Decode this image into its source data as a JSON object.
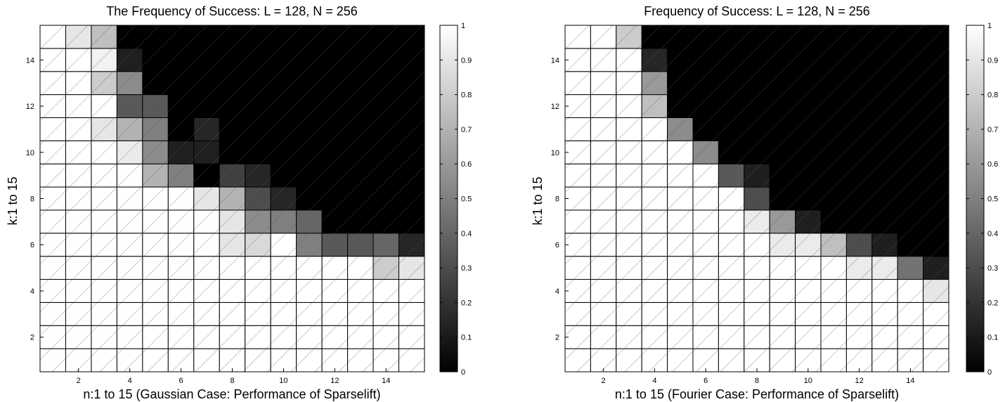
{
  "chart_data": [
    {
      "type": "heatmap",
      "title": "The Frequency of Success: L = 128, N = 256",
      "xlabel": "n:1 to 15 (Gaussian Case: Performance of Sparselift)",
      "ylabel": "k:1 to 15",
      "x_ticks": [
        "2",
        "4",
        "6",
        "8",
        "10",
        "12",
        "14"
      ],
      "y_ticks": [
        "2",
        "4",
        "6",
        "8",
        "10",
        "12",
        "14"
      ],
      "colorbar_ticks": [
        "0",
        "0.1",
        "0.2",
        "0.3",
        "0.4",
        "0.5",
        "0.6",
        "0.7",
        "0.8",
        "0.9",
        "1"
      ],
      "colormap": "gray",
      "clim": [
        0,
        1
      ],
      "x": [
        1,
        2,
        3,
        4,
        5,
        6,
        7,
        8,
        9,
        10,
        11,
        12,
        13,
        14,
        15
      ],
      "y": [
        1,
        2,
        3,
        4,
        5,
        6,
        7,
        8,
        9,
        10,
        11,
        12,
        13,
        14,
        15
      ],
      "values": [
        [
          1,
          1,
          1,
          1,
          1,
          1,
          1,
          1,
          1,
          1,
          1,
          1,
          1,
          1,
          1
        ],
        [
          1,
          1,
          1,
          1,
          1,
          1,
          1,
          1,
          1,
          1,
          1,
          1,
          1,
          1,
          1
        ],
        [
          1,
          1,
          1,
          1,
          1,
          1,
          1,
          1,
          1,
          1,
          1,
          1,
          1,
          1,
          1
        ],
        [
          1,
          1,
          1,
          1,
          1,
          1,
          1,
          1,
          1,
          1,
          1,
          1,
          1,
          1,
          1
        ],
        [
          1,
          1,
          1,
          1,
          1,
          1,
          1,
          1,
          1,
          1,
          1,
          1,
          1,
          0.8,
          0.9
        ],
        [
          1,
          1,
          1,
          1,
          1,
          1,
          1,
          0.9,
          0.85,
          1,
          0.5,
          0.35,
          0.35,
          0.4,
          0.15
        ],
        [
          1,
          1,
          1,
          1,
          1,
          1,
          1,
          0.9,
          0.55,
          0.5,
          0.4,
          0,
          0,
          0,
          0
        ],
        [
          1,
          1,
          1,
          1,
          1,
          1,
          0.9,
          0.7,
          0.3,
          0.15,
          0,
          0,
          0,
          0,
          0
        ],
        [
          1,
          1,
          1,
          1,
          0.7,
          0.5,
          0,
          0.25,
          0.15,
          0,
          0,
          0,
          0,
          0,
          0
        ],
        [
          1,
          1,
          1,
          0.92,
          0.55,
          0.12,
          0.12,
          0,
          0,
          0,
          0,
          0,
          0,
          0,
          0
        ],
        [
          1,
          1,
          0.9,
          0.7,
          0.5,
          0,
          0.15,
          0,
          0,
          0,
          0,
          0,
          0,
          0,
          0
        ],
        [
          1,
          1,
          1,
          0.35,
          0.35,
          0,
          0,
          0,
          0,
          0,
          0,
          0,
          0,
          0,
          0
        ],
        [
          1,
          1,
          0.8,
          0.55,
          0,
          0,
          0,
          0,
          0,
          0,
          0,
          0,
          0,
          0,
          0
        ],
        [
          1,
          1,
          0.95,
          0.12,
          0,
          0,
          0,
          0,
          0,
          0,
          0,
          0,
          0,
          0,
          0
        ],
        [
          1,
          0.9,
          0.75,
          0,
          0,
          0,
          0,
          0,
          0,
          0,
          0,
          0,
          0,
          0,
          0
        ]
      ]
    },
    {
      "type": "heatmap",
      "title": "Frequency of Success: L = 128, N = 256",
      "xlabel": "n:1 to 15 (Fourier Case: Performance of Sparselift)",
      "ylabel": "k:1 to 15",
      "x_ticks": [
        "2",
        "4",
        "6",
        "8",
        "10",
        "12",
        "14"
      ],
      "y_ticks": [
        "2",
        "4",
        "6",
        "8",
        "10",
        "12",
        "14"
      ],
      "colorbar_ticks": [
        "0",
        "0.1",
        "0.2",
        "0.3",
        "0.4",
        "0.5",
        "0.6",
        "0.7",
        "0.8",
        "0.9",
        "1"
      ],
      "colormap": "gray",
      "clim": [
        0,
        1
      ],
      "x": [
        1,
        2,
        3,
        4,
        5,
        6,
        7,
        8,
        9,
        10,
        11,
        12,
        13,
        14,
        15
      ],
      "y": [
        1,
        2,
        3,
        4,
        5,
        6,
        7,
        8,
        9,
        10,
        11,
        12,
        13,
        14,
        15
      ],
      "values": [
        [
          1,
          1,
          1,
          1,
          1,
          1,
          1,
          1,
          1,
          1,
          1,
          1,
          1,
          1,
          1
        ],
        [
          1,
          1,
          1,
          1,
          1,
          1,
          1,
          1,
          1,
          1,
          1,
          1,
          1,
          1,
          1
        ],
        [
          1,
          1,
          1,
          1,
          1,
          1,
          1,
          1,
          1,
          1,
          1,
          1,
          1,
          1,
          1
        ],
        [
          1,
          1,
          1,
          1,
          1,
          1,
          1,
          1,
          1,
          1,
          1,
          1,
          1,
          1,
          0.9
        ],
        [
          1,
          1,
          1,
          1,
          1,
          1,
          1,
          1,
          1,
          1,
          1,
          0.92,
          0.92,
          0.45,
          0.12
        ],
        [
          1,
          1,
          1,
          1,
          1,
          1,
          1,
          1,
          0.92,
          0.92,
          0.75,
          0.3,
          0.12,
          0,
          0
        ],
        [
          1,
          1,
          1,
          1,
          1,
          1,
          1,
          0.92,
          0.6,
          0.12,
          0,
          0,
          0,
          0,
          0
        ],
        [
          1,
          1,
          1,
          1,
          1,
          1,
          1,
          0.3,
          0,
          0,
          0,
          0,
          0,
          0,
          0
        ],
        [
          1,
          1,
          1,
          1,
          1,
          1,
          0.35,
          0.12,
          0,
          0,
          0,
          0,
          0,
          0,
          0
        ],
        [
          1,
          1,
          1,
          1,
          1,
          0.55,
          0,
          0,
          0,
          0,
          0,
          0,
          0,
          0,
          0
        ],
        [
          1,
          1,
          1,
          1,
          0.55,
          0,
          0,
          0,
          0,
          0,
          0,
          0,
          0,
          0,
          0
        ],
        [
          1,
          1,
          1,
          0.75,
          0,
          0,
          0,
          0,
          0,
          0,
          0,
          0,
          0,
          0,
          0
        ],
        [
          1,
          1,
          1,
          0.6,
          0,
          0,
          0,
          0,
          0,
          0,
          0,
          0,
          0,
          0,
          0
        ],
        [
          1,
          1,
          1,
          0.15,
          0,
          0,
          0,
          0,
          0,
          0,
          0,
          0,
          0,
          0,
          0
        ],
        [
          1,
          1,
          0.8,
          0,
          0,
          0,
          0,
          0,
          0,
          0,
          0,
          0,
          0,
          0,
          0
        ]
      ]
    }
  ]
}
